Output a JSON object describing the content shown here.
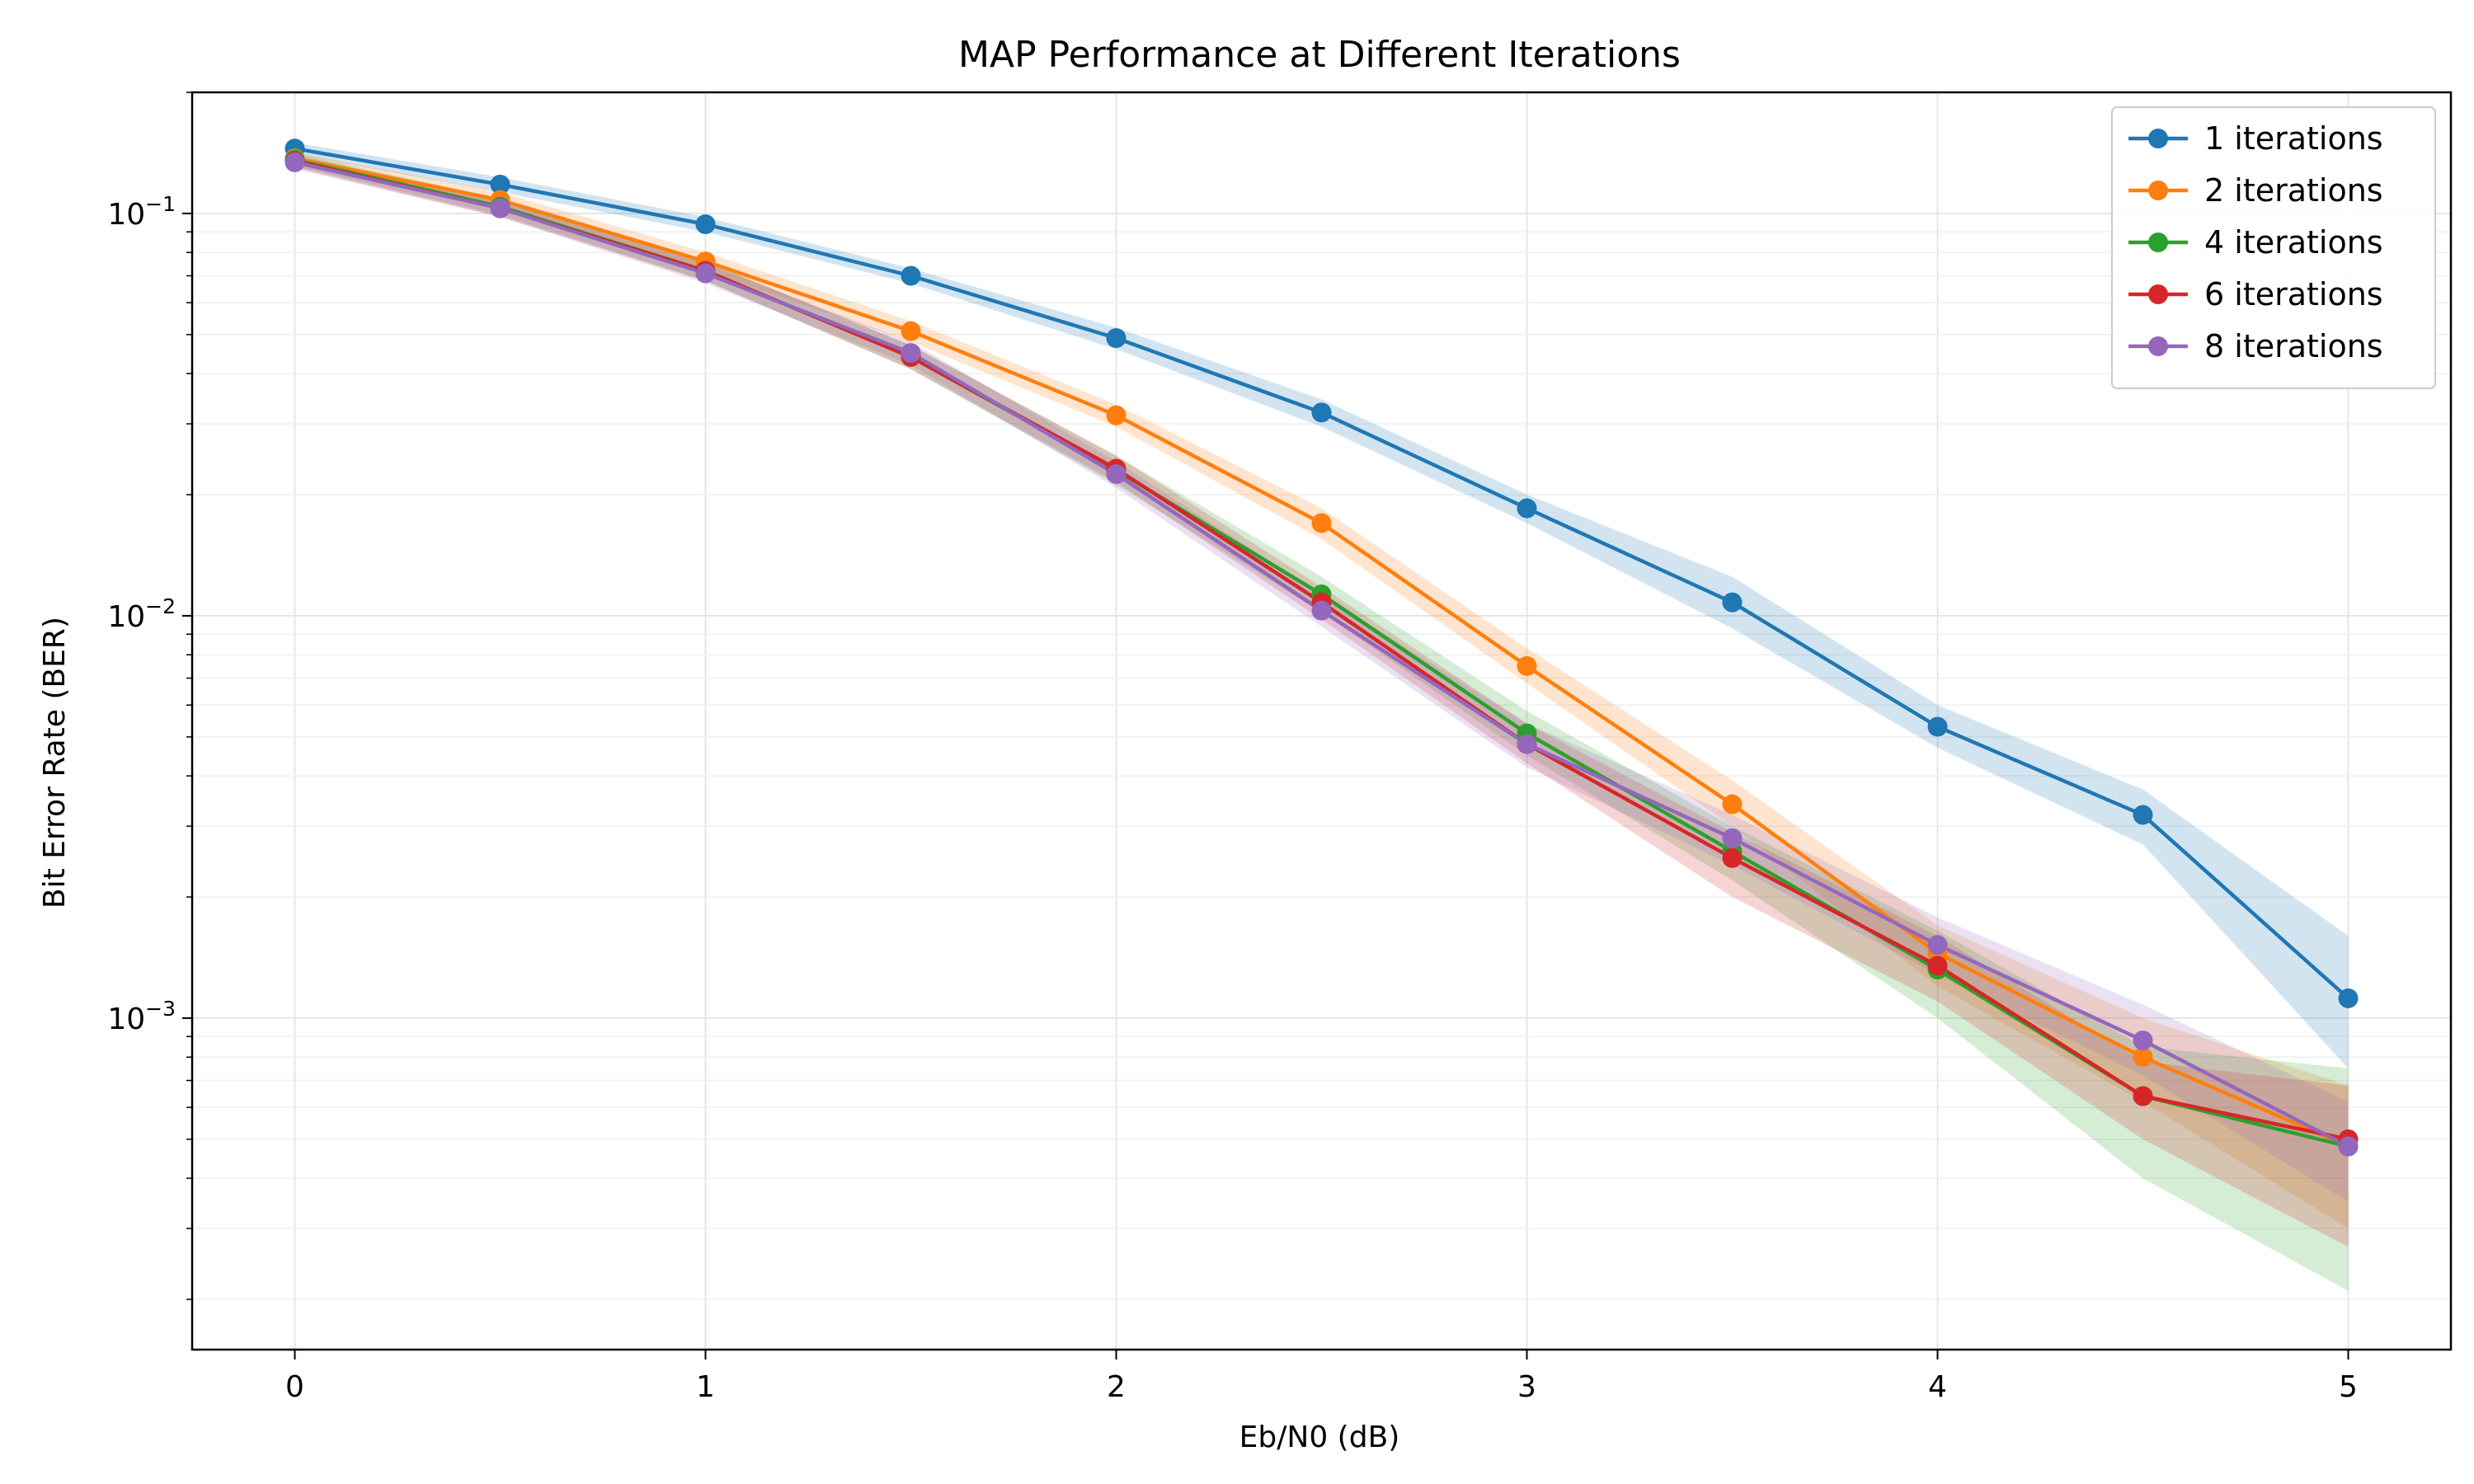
{
  "chart_data": {
    "type": "line",
    "title": "MAP Performance at Different Iterations",
    "xlabel": "Eb/N0 (dB)",
    "ylabel": "Bit Error Rate (BER)",
    "x_scale": "linear",
    "y_scale": "log",
    "xlim": [
      -0.25,
      5.25
    ],
    "ylim": [
      0.00015,
      0.2
    ],
    "x_ticks": [
      0,
      1,
      2,
      3,
      4,
      5
    ],
    "x_tick_labels": [
      "0",
      "1",
      "2",
      "3",
      "4",
      "5"
    ],
    "y_ticks": [
      0.001,
      0.01,
      0.1
    ],
    "y_tick_labels": [
      {
        "base": "10",
        "exp": "−3"
      },
      {
        "base": "10",
        "exp": "−2"
      },
      {
        "base": "10",
        "exp": "−1"
      }
    ],
    "grid": true,
    "legend_position": "top-right",
    "x": [
      0,
      0.5,
      1,
      1.5,
      2,
      2.5,
      3,
      3.5,
      4,
      4.5,
      5
    ],
    "series": [
      {
        "name": "1 iterations",
        "color": "#1f77b4",
        "values": [
          0.145,
          0.118,
          0.094,
          0.07,
          0.049,
          0.032,
          0.0185,
          0.0108,
          0.0053,
          0.0032,
          0.00112
        ],
        "lower": [
          0.14,
          0.113,
          0.09,
          0.067,
          0.046,
          0.0295,
          0.017,
          0.0093,
          0.0047,
          0.0027,
          0.00075
        ],
        "upper": [
          0.15,
          0.123,
          0.098,
          0.073,
          0.052,
          0.0345,
          0.02,
          0.0125,
          0.006,
          0.0037,
          0.0016
        ]
      },
      {
        "name": "2 iterations",
        "color": "#ff7f0e",
        "values": [
          0.137,
          0.108,
          0.076,
          0.051,
          0.0315,
          0.017,
          0.0075,
          0.0034,
          0.00145,
          0.0008,
          0.00048
        ],
        "lower": [
          0.132,
          0.103,
          0.072,
          0.048,
          0.0295,
          0.0155,
          0.0068,
          0.003,
          0.0012,
          0.00062,
          0.0003
        ],
        "upper": [
          0.142,
          0.113,
          0.08,
          0.054,
          0.0335,
          0.0185,
          0.0083,
          0.0039,
          0.0017,
          0.001,
          0.00068
        ]
      },
      {
        "name": "4 iterations",
        "color": "#2ca02c",
        "values": [
          0.136,
          0.104,
          0.072,
          0.044,
          0.023,
          0.0113,
          0.0051,
          0.0026,
          0.00132,
          0.00064,
          0.00048
        ],
        "lower": [
          0.131,
          0.099,
          0.068,
          0.041,
          0.0212,
          0.0102,
          0.0045,
          0.0022,
          0.001,
          0.0004,
          0.00021
        ],
        "upper": [
          0.141,
          0.109,
          0.076,
          0.047,
          0.025,
          0.0125,
          0.0058,
          0.003,
          0.00165,
          0.00085,
          0.00075
        ]
      },
      {
        "name": "6 iterations",
        "color": "#d62728",
        "values": [
          0.135,
          0.103,
          0.072,
          0.044,
          0.0232,
          0.0108,
          0.0048,
          0.0025,
          0.00135,
          0.00064,
          0.0005
        ],
        "lower": [
          0.13,
          0.098,
          0.068,
          0.041,
          0.0215,
          0.0098,
          0.0043,
          0.002,
          0.0011,
          0.0005,
          0.00027
        ],
        "upper": [
          0.14,
          0.108,
          0.076,
          0.047,
          0.025,
          0.0118,
          0.0054,
          0.0029,
          0.0016,
          0.00078,
          0.00068
        ]
      },
      {
        "name": "8 iterations",
        "color": "#9467bd",
        "values": [
          0.134,
          0.103,
          0.071,
          0.045,
          0.0225,
          0.0103,
          0.0048,
          0.0028,
          0.00152,
          0.00088,
          0.00048
        ],
        "lower": [
          0.129,
          0.098,
          0.067,
          0.042,
          0.0208,
          0.0094,
          0.0042,
          0.0024,
          0.00128,
          0.00072,
          0.00035
        ],
        "upper": [
          0.139,
          0.108,
          0.075,
          0.048,
          0.0242,
          0.0113,
          0.0054,
          0.0032,
          0.00178,
          0.00108,
          0.00062
        ]
      }
    ]
  }
}
